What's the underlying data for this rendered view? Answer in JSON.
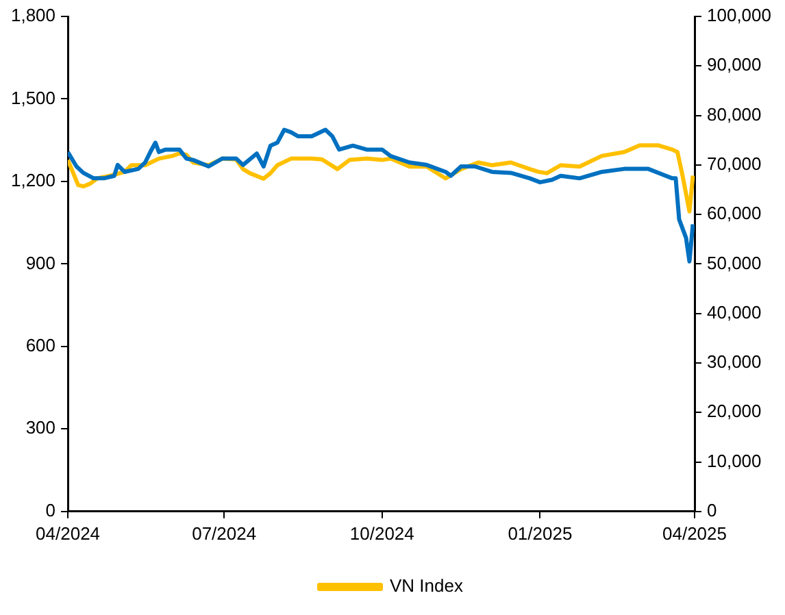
{
  "chart_data": {
    "type": "line",
    "legend": "bottom",
    "grid": false,
    "marker": "none",
    "line_style": "solid",
    "xlim": [
      "2024-04-01",
      "2025-04-01"
    ],
    "xticks": [
      {
        "value": "2024-04-01",
        "label": "04/2024"
      },
      {
        "value": "2024-07-01",
        "label": "07/2024"
      },
      {
        "value": "2024-10-01",
        "label": "10/2024"
      },
      {
        "value": "2025-01-01",
        "label": "01/2025"
      },
      {
        "value": "2025-04-01",
        "label": "04/2025"
      }
    ],
    "ylim": [
      0,
      1800
    ],
    "yticks": [
      {
        "value": 0,
        "label": "0"
      },
      {
        "value": 300,
        "label": "300"
      },
      {
        "value": 600,
        "label": "600"
      },
      {
        "value": 900,
        "label": "900"
      },
      {
        "value": 1200,
        "label": "1,200"
      },
      {
        "value": 1500,
        "label": "1,500"
      },
      {
        "value": 1800,
        "label": "1,800"
      }
    ],
    "y2lim": [
      0,
      100000
    ],
    "y2ticks": [
      {
        "value": 0,
        "label": "0"
      },
      {
        "value": 10000,
        "label": "10,000"
      },
      {
        "value": 20000,
        "label": "20,000"
      },
      {
        "value": 30000,
        "label": "30,000"
      },
      {
        "value": 40000,
        "label": "40,000"
      },
      {
        "value": 50000,
        "label": "50,000"
      },
      {
        "value": 60000,
        "label": "60,000"
      },
      {
        "value": 70000,
        "label": "70,000"
      },
      {
        "value": 80000,
        "label": "80,000"
      },
      {
        "value": 90000,
        "label": "90,000"
      },
      {
        "value": 100000,
        "label": "100,000"
      }
    ],
    "series": [
      {
        "name": "VN Index",
        "color": "#ffc000",
        "x": [
          "2024-04-01",
          "2024-04-07",
          "2024-04-10",
          "2024-04-14",
          "2024-04-18",
          "2024-04-26",
          "2024-05-04",
          "2024-05-08",
          "2024-05-16",
          "2024-05-24",
          "2024-06-01",
          "2024-06-05",
          "2024-06-09",
          "2024-06-13",
          "2024-06-22",
          "2024-06-30",
          "2024-07-08",
          "2024-07-12",
          "2024-07-16",
          "2024-07-24",
          "2024-07-28",
          "2024-08-01",
          "2024-08-09",
          "2024-08-21",
          "2024-08-27",
          "2024-09-05",
          "2024-09-12",
          "2024-09-22",
          "2024-10-01",
          "2024-10-06",
          "2024-10-17",
          "2024-10-27",
          "2024-11-07",
          "2024-11-16",
          "2024-11-26",
          "2024-12-04",
          "2024-12-15",
          "2024-12-26",
          "2024-12-31",
          "2025-01-05",
          "2025-01-13",
          "2025-01-24",
          "2025-02-06",
          "2025-02-19",
          "2025-02-28",
          "2025-03-11",
          "2025-03-19",
          "2025-03-22",
          "2025-03-25",
          "2025-03-29",
          "2025-03-31"
        ],
        "values": [
          1278,
          1187,
          1182,
          1192,
          1211,
          1221,
          1235,
          1259,
          1259,
          1283,
          1293,
          1302,
          1297,
          1269,
          1259,
          1283,
          1280,
          1245,
          1230,
          1210,
          1230,
          1259,
          1283,
          1283,
          1280,
          1245,
          1278,
          1283,
          1278,
          1283,
          1254,
          1254,
          1211,
          1245,
          1269,
          1259,
          1269,
          1245,
          1235,
          1230,
          1259,
          1254,
          1293,
          1307,
          1331,
          1331,
          1316,
          1307,
          1221,
          1091,
          1221
        ]
      },
      {
        "color": "#0070c0",
        "axis": "y2",
        "x": [
          "2024-04-01",
          "2024-04-06",
          "2024-04-10",
          "2024-04-16",
          "2024-04-22",
          "2024-04-28",
          "2024-04-30",
          "2024-05-04",
          "2024-05-12",
          "2024-05-16",
          "2024-05-19",
          "2024-05-22",
          "2024-05-24",
          "2024-05-28",
          "2024-06-05",
          "2024-06-09",
          "2024-06-13",
          "2024-06-22",
          "2024-06-30",
          "2024-07-08",
          "2024-07-12",
          "2024-07-20",
          "2024-07-24",
          "2024-07-28",
          "2024-08-01",
          "2024-08-05",
          "2024-08-09",
          "2024-08-13",
          "2024-08-21",
          "2024-08-29",
          "2024-09-02",
          "2024-09-06",
          "2024-09-14",
          "2024-09-22",
          "2024-10-01",
          "2024-10-06",
          "2024-10-17",
          "2024-10-27",
          "2024-11-07",
          "2024-11-10",
          "2024-11-16",
          "2024-11-24",
          "2024-12-04",
          "2024-12-15",
          "2024-12-26",
          "2025-01-01",
          "2025-01-08",
          "2025-01-13",
          "2025-01-24",
          "2025-02-06",
          "2025-02-19",
          "2025-03-05",
          "2025-03-19",
          "2025-03-21",
          "2025-03-23",
          "2025-03-27",
          "2025-03-29",
          "2025-03-31"
        ],
        "values": [
          72600,
          69700,
          68400,
          67300,
          67300,
          67800,
          70000,
          68600,
          69200,
          70500,
          72600,
          74500,
          72600,
          73100,
          73100,
          71300,
          71000,
          69700,
          71300,
          71300,
          70000,
          72300,
          69700,
          73900,
          74500,
          77100,
          76600,
          75800,
          75800,
          77100,
          75800,
          73100,
          73900,
          73100,
          73100,
          71800,
          70500,
          70000,
          68600,
          67800,
          69700,
          69700,
          68600,
          68400,
          67300,
          66500,
          67000,
          67800,
          67300,
          68600,
          69200,
          69200,
          67300,
          67300,
          59000,
          55300,
          50500,
          58000
        ]
      }
    ]
  }
}
